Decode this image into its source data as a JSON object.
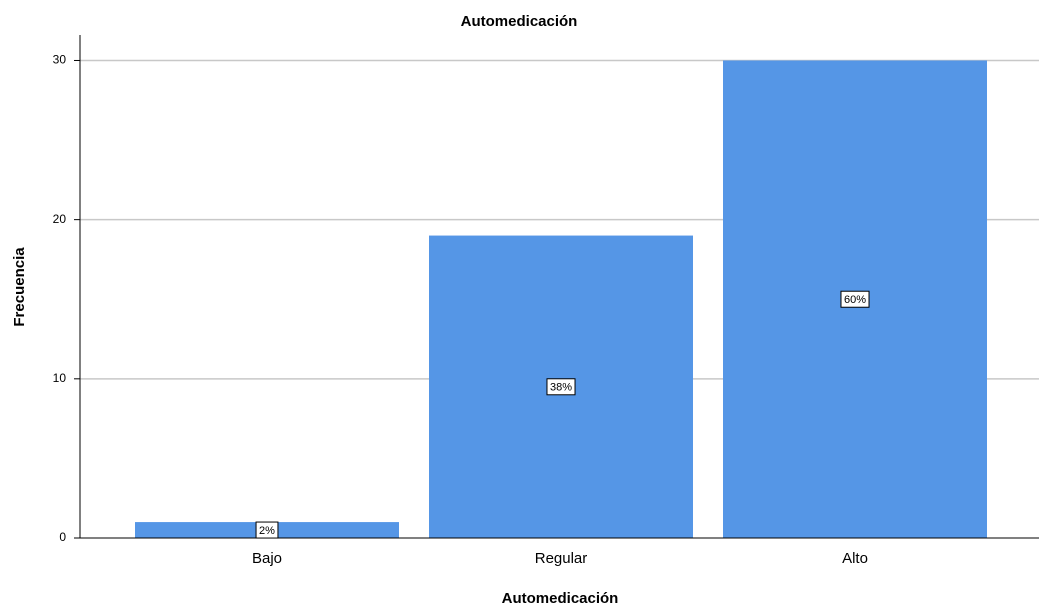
{
  "chart_data": {
    "type": "bar",
    "title": "Automedicación",
    "x_label": "Automedicación",
    "y_label": "Frecuencia",
    "categories": [
      "Bajo",
      "Regular",
      "Alto"
    ],
    "values": [
      1,
      19,
      30
    ],
    "color": "#5596e6",
    "percentages": [
      2,
      38,
      60
    ],
    "percentage_labels": [
      "2%",
      "38%",
      "60%"
    ],
    "ylim": [
      0,
      31.6
    ],
    "yticks": [
      0,
      10,
      20,
      30
    ],
    "grid": true
  }
}
